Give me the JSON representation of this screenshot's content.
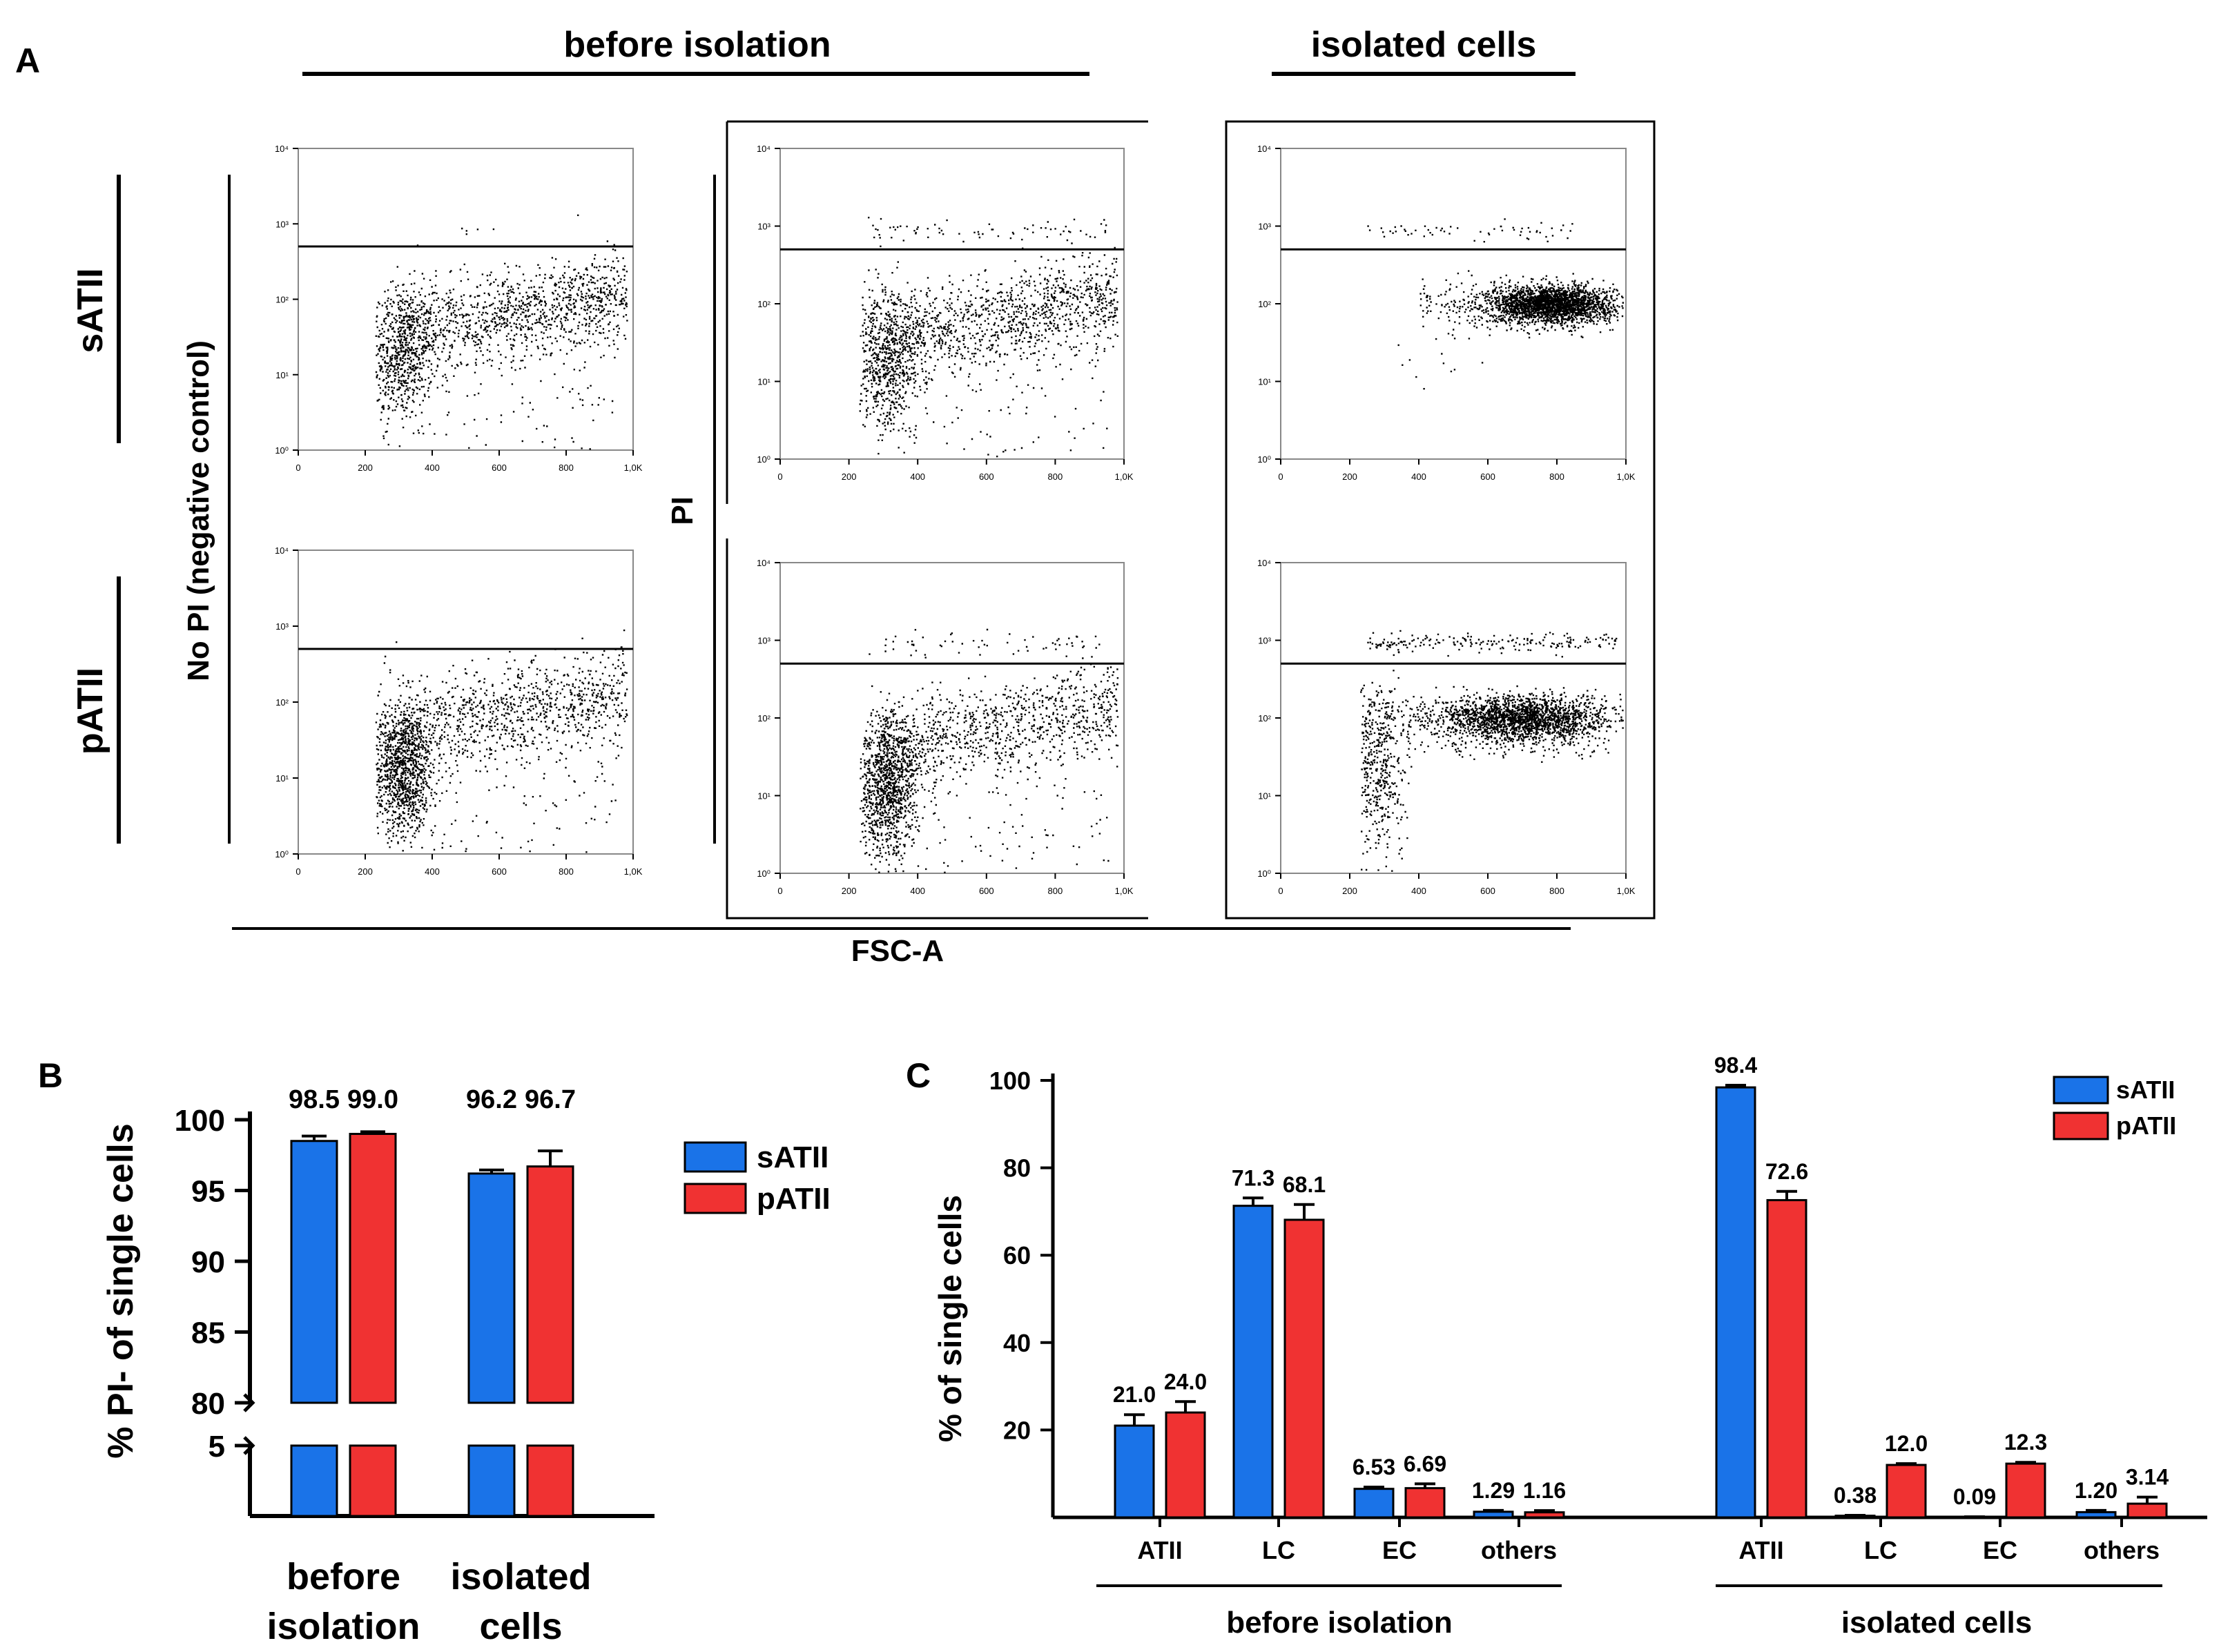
{
  "figure": {
    "panel_a_label": "A",
    "panel_b_label": "B",
    "panel_c_label": "C"
  },
  "panel_a": {
    "col_header_before": "before isolation",
    "col_header_isolated": "isolated cells",
    "row_label_sATII": "sATII",
    "row_label_pATII": "pATII",
    "side_label_no_pi": "No PI (negative control)",
    "side_label_pi": "PI",
    "x_axis_label": "FSC-A",
    "x_ticks": [
      "0",
      "200",
      "400",
      "600",
      "800",
      "1,0K"
    ],
    "y_ticks": [
      "10⁰",
      "10¹",
      "10²",
      "10³",
      "10⁴"
    ],
    "gate_description": "horizontal gate line at ~5×10² PI"
  },
  "chart_data": [
    {
      "panel": "B",
      "type": "bar",
      "ylabel": "% PI- of single cells",
      "xlabel": "",
      "axis_break": true,
      "ylim_upper": [
        80,
        100
      ],
      "yticks": [
        "100",
        "95",
        "90",
        "85",
        "80",
        "5"
      ],
      "groups": [
        "before isolation",
        "isolated cells"
      ],
      "group_labels_line1": [
        "before",
        "isolated"
      ],
      "group_labels_line2": [
        "isolation",
        "cells"
      ],
      "series": [
        {
          "name": "sATII",
          "color": "#1a73e8",
          "values": [
            98.5,
            96.2
          ],
          "errors": [
            0.35,
            0.25
          ],
          "labels": [
            "98.5",
            "96.2"
          ]
        },
        {
          "name": "pATII",
          "color": "#f03232",
          "values": [
            99.0,
            96.7
          ],
          "errors": [
            0.15,
            1.1
          ],
          "labels": [
            "99.0",
            "96.7"
          ]
        }
      ],
      "legend": [
        "sATII",
        "pATII"
      ],
      "legend_position": "top-right"
    },
    {
      "panel": "C",
      "type": "bar",
      "ylabel": "% of single cells",
      "xlabel": "",
      "ylim": [
        0,
        100
      ],
      "yticks": [
        "100",
        "80",
        "60",
        "40",
        "20"
      ],
      "groups": [
        "before isolation",
        "isolated cells"
      ],
      "categories": [
        "ATII",
        "LC",
        "EC",
        "others"
      ],
      "series": [
        {
          "name": "sATII",
          "color": "#1a73e8",
          "values": [
            [
              21.0,
              71.3,
              6.53,
              1.29
            ],
            [
              98.4,
              0.38,
              0.09,
              1.2
            ]
          ],
          "errors": [
            [
              2.5,
              1.8,
              0.4,
              0.3
            ],
            [
              0.5,
              0.1,
              0.05,
              0.4
            ]
          ],
          "labels": [
            [
              "21.0",
              "71.3",
              "6.53",
              "1.29"
            ],
            [
              "98.4",
              "0.38",
              "0.09",
              "1.20"
            ]
          ]
        },
        {
          "name": "pATII",
          "color": "#f03232",
          "values": [
            [
              24.0,
              68.1,
              6.69,
              1.16
            ],
            [
              72.6,
              12.0,
              12.3,
              3.14
            ]
          ],
          "errors": [
            [
              2.5,
              3.5,
              1.0,
              0.4
            ],
            [
              2.0,
              0.3,
              0.3,
              1.5
            ]
          ],
          "labels": [
            [
              "24.0",
              "68.1",
              "6.69",
              "1.16"
            ],
            [
              "72.6",
              "12.0",
              "12.3",
              "3.14"
            ]
          ]
        }
      ],
      "legend": [
        "sATII",
        "pATII"
      ],
      "legend_position": "top-right"
    }
  ]
}
